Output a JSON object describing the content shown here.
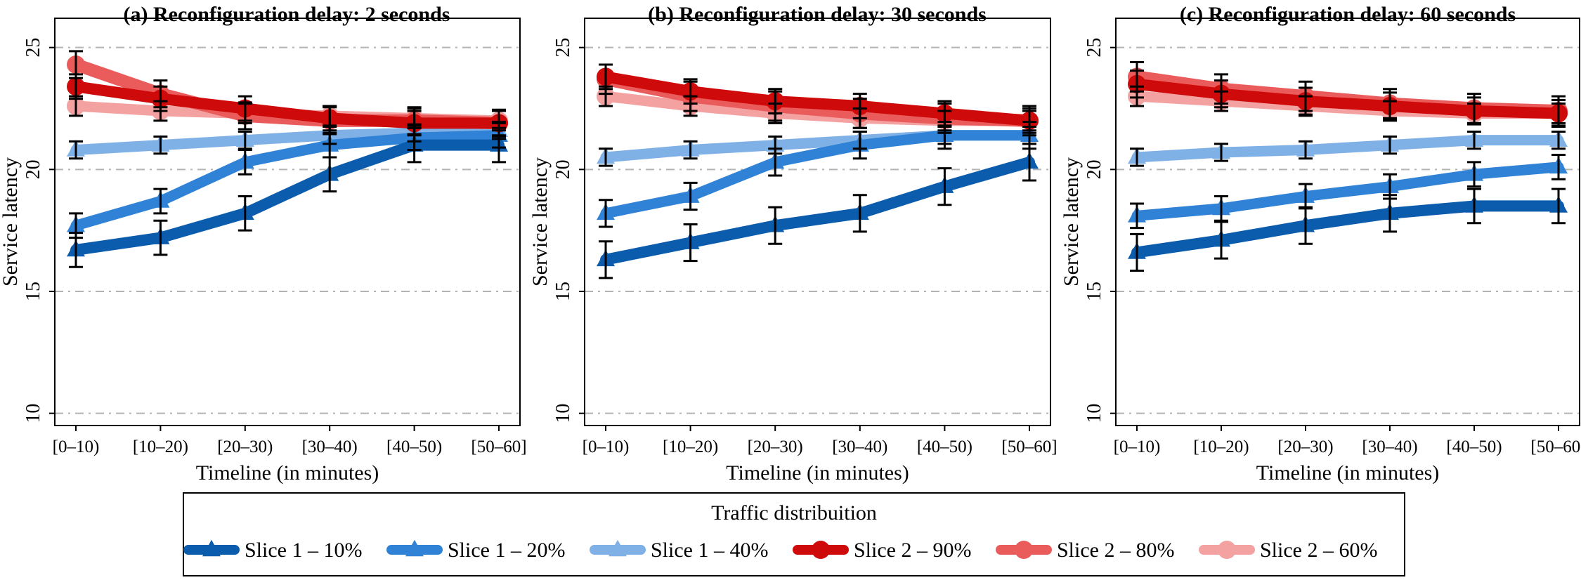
{
  "chart_data": [
    {
      "type": "line",
      "title": "(a) Reconfiguration delay: 2 seconds",
      "xlabel": "Timeline (in minutes)",
      "ylabel": "Service latency",
      "categories": [
        "[0–10)",
        "[10–20)",
        "[20–30)",
        "[30–40)",
        "[40–50)",
        "[50–60]"
      ],
      "yticks": [
        10,
        15,
        20,
        25
      ],
      "ylim": [
        9.5,
        26.2
      ],
      "grid": "horizontal dashed at 10, 15, 20, 25",
      "series": [
        {
          "name": "Slice 1 – 10%",
          "values": [
            16.7,
            17.2,
            18.2,
            19.8,
            21.0,
            21.0
          ],
          "err": [
            0.7,
            0.7,
            0.7,
            0.7,
            0.7,
            0.7
          ]
        },
        {
          "name": "Slice 1 – 20%",
          "values": [
            17.7,
            18.7,
            20.3,
            21.0,
            21.3,
            21.4
          ],
          "err": [
            0.5,
            0.5,
            0.5,
            0.5,
            0.5,
            0.5
          ]
        },
        {
          "name": "Slice 1 – 40%",
          "values": [
            20.8,
            21.0,
            21.2,
            21.4,
            21.5,
            21.6
          ],
          "err": [
            0.35,
            0.35,
            0.35,
            0.35,
            0.35,
            0.35
          ]
        },
        {
          "name": "Slice 2 – 90%",
          "values": [
            23.4,
            22.9,
            22.5,
            22.1,
            21.9,
            21.9
          ],
          "err": [
            0.5,
            0.5,
            0.5,
            0.5,
            0.5,
            0.5
          ]
        },
        {
          "name": "Slice 2 – 80%",
          "values": [
            24.3,
            23.1,
            22.2,
            22.0,
            22.0,
            21.9
          ],
          "err": [
            0.55,
            0.55,
            0.55,
            0.55,
            0.55,
            0.55
          ]
        },
        {
          "name": "Slice 2 – 60%",
          "values": [
            22.6,
            22.4,
            22.3,
            22.2,
            22.1,
            22.0
          ],
          "err": [
            0.4,
            0.4,
            0.4,
            0.4,
            0.4,
            0.4
          ]
        }
      ]
    },
    {
      "type": "line",
      "title": "(b) Reconfiguration delay: 30 seconds",
      "xlabel": "Timeline (in minutes)",
      "ylabel": "Service latency",
      "categories": [
        "[0–10)",
        "[10–20)",
        "[20–30)",
        "[30–40)",
        "[40–50)",
        "[50–60]"
      ],
      "yticks": [
        10,
        15,
        20,
        25
      ],
      "ylim": [
        9.5,
        26.2
      ],
      "grid": "horizontal dashed at 10, 15, 20, 25",
      "series": [
        {
          "name": "Slice 1 – 10%",
          "values": [
            16.3,
            17.0,
            17.7,
            18.2,
            19.3,
            20.3
          ],
          "err": [
            0.75,
            0.75,
            0.75,
            0.75,
            0.75,
            0.75
          ]
        },
        {
          "name": "Slice 1 – 20%",
          "values": [
            18.2,
            18.9,
            20.3,
            21.0,
            21.4,
            21.4
          ],
          "err": [
            0.55,
            0.55,
            0.55,
            0.55,
            0.55,
            0.55
          ]
        },
        {
          "name": "Slice 1 – 40%",
          "values": [
            20.5,
            20.8,
            21.0,
            21.2,
            21.4,
            21.4
          ],
          "err": [
            0.35,
            0.35,
            0.35,
            0.35,
            0.35,
            0.35
          ]
        },
        {
          "name": "Slice 2 – 90%",
          "values": [
            23.8,
            23.2,
            22.8,
            22.6,
            22.3,
            22.0
          ],
          "err": [
            0.5,
            0.5,
            0.5,
            0.5,
            0.5,
            0.5
          ]
        },
        {
          "name": "Slice 2 – 80%",
          "values": [
            23.7,
            23.0,
            22.6,
            22.3,
            22.1,
            22.0
          ],
          "err": [
            0.6,
            0.6,
            0.6,
            0.6,
            0.6,
            0.6
          ]
        },
        {
          "name": "Slice 2 – 60%",
          "values": [
            23.0,
            22.6,
            22.3,
            22.1,
            22.0,
            22.0
          ],
          "err": [
            0.4,
            0.4,
            0.4,
            0.4,
            0.4,
            0.4
          ]
        }
      ]
    },
    {
      "type": "line",
      "title": "(c) Reconfiguration delay: 60 seconds",
      "xlabel": "Timeline (in minutes)",
      "ylabel": "Service latency",
      "categories": [
        "[0–10)",
        "[10–20)",
        "[20–30)",
        "[30–40)",
        "[40–50)",
        "[50–60]"
      ],
      "yticks": [
        10,
        15,
        20,
        25
      ],
      "ylim": [
        9.5,
        26.2
      ],
      "grid": "horizontal dashed at 10, 15, 20, 25",
      "series": [
        {
          "name": "Slice 1 – 10%",
          "values": [
            16.6,
            17.1,
            17.7,
            18.2,
            18.5,
            18.5
          ],
          "err": [
            0.75,
            0.75,
            0.75,
            0.75,
            0.7,
            0.7
          ]
        },
        {
          "name": "Slice 1 – 20%",
          "values": [
            18.1,
            18.4,
            18.9,
            19.3,
            19.8,
            20.1
          ],
          "err": [
            0.5,
            0.5,
            0.5,
            0.5,
            0.5,
            0.5
          ]
        },
        {
          "name": "Slice 1 – 40%",
          "values": [
            20.5,
            20.7,
            20.8,
            21.0,
            21.2,
            21.2
          ],
          "err": [
            0.35,
            0.35,
            0.35,
            0.35,
            0.35,
            0.35
          ]
        },
        {
          "name": "Slice 2 – 90%",
          "values": [
            23.5,
            23.1,
            22.8,
            22.6,
            22.4,
            22.3
          ],
          "err": [
            0.55,
            0.55,
            0.55,
            0.55,
            0.55,
            0.55
          ]
        },
        {
          "name": "Slice 2 – 80%",
          "values": [
            23.8,
            23.3,
            23.0,
            22.7,
            22.5,
            22.4
          ],
          "err": [
            0.6,
            0.6,
            0.6,
            0.6,
            0.6,
            0.6
          ]
        },
        {
          "name": "Slice 2 – 60%",
          "values": [
            23.0,
            22.8,
            22.6,
            22.4,
            22.3,
            22.3
          ],
          "err": [
            0.4,
            0.4,
            0.4,
            0.4,
            0.4,
            0.4
          ]
        }
      ]
    }
  ],
  "legend": {
    "title": "Traffic distribuition",
    "placement": "bottom-center",
    "items": [
      {
        "label": "Slice 1 – 10%",
        "color": "#0b5cad",
        "marker": "triangle"
      },
      {
        "label": "Slice 1 – 20%",
        "color": "#2f82d6",
        "marker": "triangle"
      },
      {
        "label": "Slice 1 – 40%",
        "color": "#7fb1e6",
        "marker": "triangle"
      },
      {
        "label": "Slice 2 – 90%",
        "color": "#cf0a0a",
        "marker": "circle"
      },
      {
        "label": "Slice 2 – 80%",
        "color": "#ea5c5c",
        "marker": "circle"
      },
      {
        "label": "Slice 2 – 60%",
        "color": "#f4a1a1",
        "marker": "circle"
      }
    ]
  },
  "colors": {
    "series": [
      "#0b5cad",
      "#2f82d6",
      "#7fb1e6",
      "#cf0a0a",
      "#ea5c5c",
      "#f4a1a1"
    ],
    "grid": "#b3b3b3",
    "errorbar": "#000000"
  }
}
